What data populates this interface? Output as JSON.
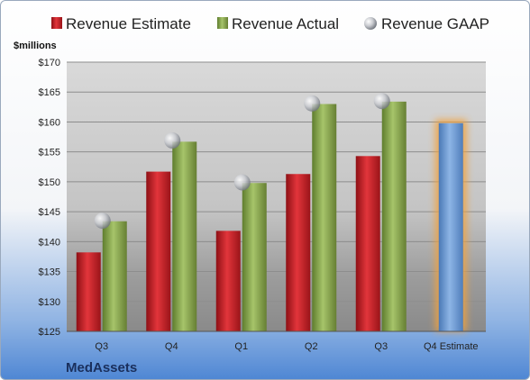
{
  "chart_data": {
    "type": "bar",
    "unit_label": "$millions",
    "company": "MedAssets",
    "categories": [
      "Q3",
      "Q4",
      "Q1",
      "Q2",
      "Q3",
      "Q4 Estimate"
    ],
    "ylim": [
      125,
      170
    ],
    "yticks": [
      "$125",
      "$130",
      "$135",
      "$140",
      "$145",
      "$150",
      "$155",
      "$160",
      "$165",
      "$170"
    ],
    "ytick_values": [
      125,
      130,
      135,
      140,
      145,
      150,
      155,
      160,
      165,
      170
    ],
    "legend_position": "top",
    "series": [
      {
        "name": "Revenue Estimate",
        "color": "#cc2027",
        "values": [
          138.2,
          151.7,
          141.8,
          151.3,
          154.3,
          null
        ]
      },
      {
        "name": "Revenue Actual",
        "color": "#8cad4e",
        "values": [
          143.4,
          156.7,
          149.8,
          163.0,
          163.4,
          null
        ]
      },
      {
        "name": "Revenue GAAP",
        "color": "#bfc3c9",
        "values": [
          143.5,
          156.9,
          149.9,
          163.1,
          163.5,
          null
        ]
      }
    ],
    "estimate": {
      "category_index": 5,
      "value": 159.8,
      "color": "#6f9fd8",
      "glow": "#f2a23c"
    },
    "grid": true
  }
}
